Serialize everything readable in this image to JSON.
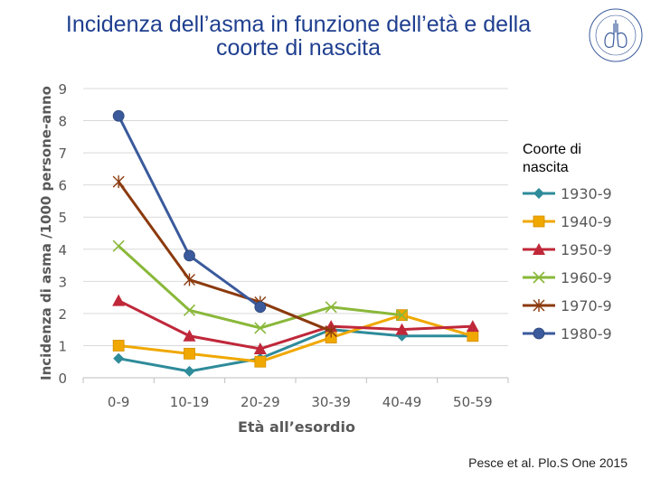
{
  "slide": {
    "title_line1": "Incidenza dell’asma in funzione dell’età e della",
    "title_line2": "coorte di nascita",
    "citation": "Pesce et al. Plo.S One 2015",
    "logo_icon": "lungs-seal-icon"
  },
  "chart_data": {
    "type": "line",
    "title": "",
    "xlabel": "Età all’esordio",
    "ylabel": "Incidenza di asma /1000 persone-anno",
    "categories": [
      "0-9",
      "10-19",
      "20-29",
      "30-39",
      "40-49",
      "50-59"
    ],
    "ylim": [
      0,
      9
    ],
    "yticks": [
      0,
      1,
      2,
      3,
      4,
      5,
      6,
      7,
      8,
      9
    ],
    "grid": true,
    "legend_title": "Coorte di nascita",
    "legend_position": "right",
    "series": [
      {
        "name": "1930-9",
        "color": "#2e8b9a",
        "marker": "diamond",
        "values": [
          0.6,
          0.2,
          0.6,
          1.5,
          1.3,
          1.3
        ]
      },
      {
        "name": "1940-9",
        "color": "#f0a800",
        "marker": "square",
        "values": [
          1.0,
          0.75,
          0.5,
          1.25,
          1.95,
          1.3
        ]
      },
      {
        "name": "1950-9",
        "color": "#c0283a",
        "marker": "triangle",
        "values": [
          2.4,
          1.3,
          0.9,
          1.6,
          1.5,
          1.6
        ]
      },
      {
        "name": "1960-9",
        "color": "#8ab83a",
        "marker": "x",
        "values": [
          4.1,
          2.1,
          1.55,
          2.2,
          1.95,
          null
        ]
      },
      {
        "name": "1970-9",
        "color": "#8b3a0e",
        "marker": "star",
        "values": [
          6.1,
          3.05,
          2.35,
          1.45,
          null,
          null
        ]
      },
      {
        "name": "1980-9",
        "color": "#3a5a9c",
        "marker": "circle",
        "values": [
          8.15,
          3.8,
          2.2,
          null,
          null,
          null
        ]
      }
    ]
  }
}
